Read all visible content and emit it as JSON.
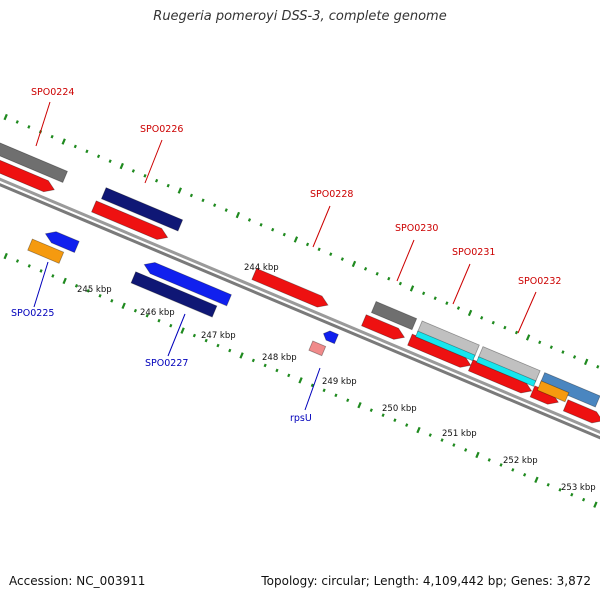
{
  "title": "Ruegeria pomeroyi DSS-3, complete genome",
  "footer": {
    "accession": "Accession: NC_003911",
    "summary": "Topology: circular; Length: 4,109,442 bp; Genes: 3,872"
  },
  "colors": {
    "red": "#ee1111",
    "navy": "#0f1775",
    "blue": "#1020ee",
    "orange": "#f59a0f",
    "gray": "#6f6f6f",
    "lightgray": "#c0c0c0",
    "cyan": "#16e6ee",
    "pink": "#f08a8a",
    "steelblue": "#4a86c0",
    "backbone": "#888888",
    "tick": "#1f8a1f",
    "label_red": "#cc0000",
    "label_blue": "#0000bb"
  },
  "scale_labels": [
    "244 kbp",
    "245 kbp",
    "246 kbp",
    "247 kbp",
    "248 kbp",
    "249 kbp",
    "250 kbp",
    "251 kbp",
    "252 kbp",
    "253 kbp"
  ],
  "genes": [
    {
      "label": "SPO0224",
      "color": "red"
    },
    {
      "label": "SPO0225",
      "color": "blue"
    },
    {
      "label": "SPO0226",
      "color": "red"
    },
    {
      "label": "SPO0227",
      "color": "blue"
    },
    {
      "label": "SPO0228",
      "color": "red"
    },
    {
      "label": "rpsU",
      "color": "blue"
    },
    {
      "label": "SPO0230",
      "color": "red"
    },
    {
      "label": "SPO0231",
      "color": "red"
    },
    {
      "label": "SPO0232",
      "color": "red"
    }
  ]
}
